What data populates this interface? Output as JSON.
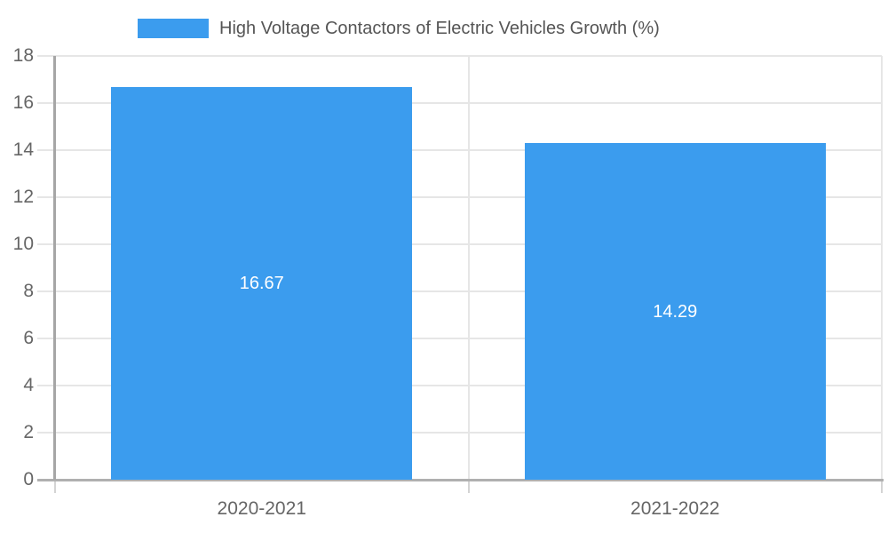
{
  "chart_data": {
    "type": "bar",
    "title": "High Voltage Contactors of Electric Vehicles Growth (%)",
    "legend": {
      "position": "top",
      "entries": [
        "High Voltage Contactors of Electric Vehicles Growth (%)"
      ]
    },
    "categories": [
      "2020-2021",
      "2021-2022"
    ],
    "values": [
      16.67,
      14.29
    ],
    "value_labels": [
      "16.67",
      "14.29"
    ],
    "xlabel": "",
    "ylabel": "",
    "ylim": [
      0,
      18
    ],
    "yticks": [
      0,
      2,
      4,
      6,
      8,
      10,
      12,
      14,
      16,
      18
    ],
    "grid": true,
    "colors": {
      "bar": "#3B9CEE",
      "grid": "#E6E6E6",
      "axis": "#B0B0B0",
      "tick": "#D4D4D4",
      "axis_text": "#666666",
      "legend_text": "#555555",
      "bar_label_text": "#FFFFFF",
      "background": "#FFFFFF"
    }
  }
}
